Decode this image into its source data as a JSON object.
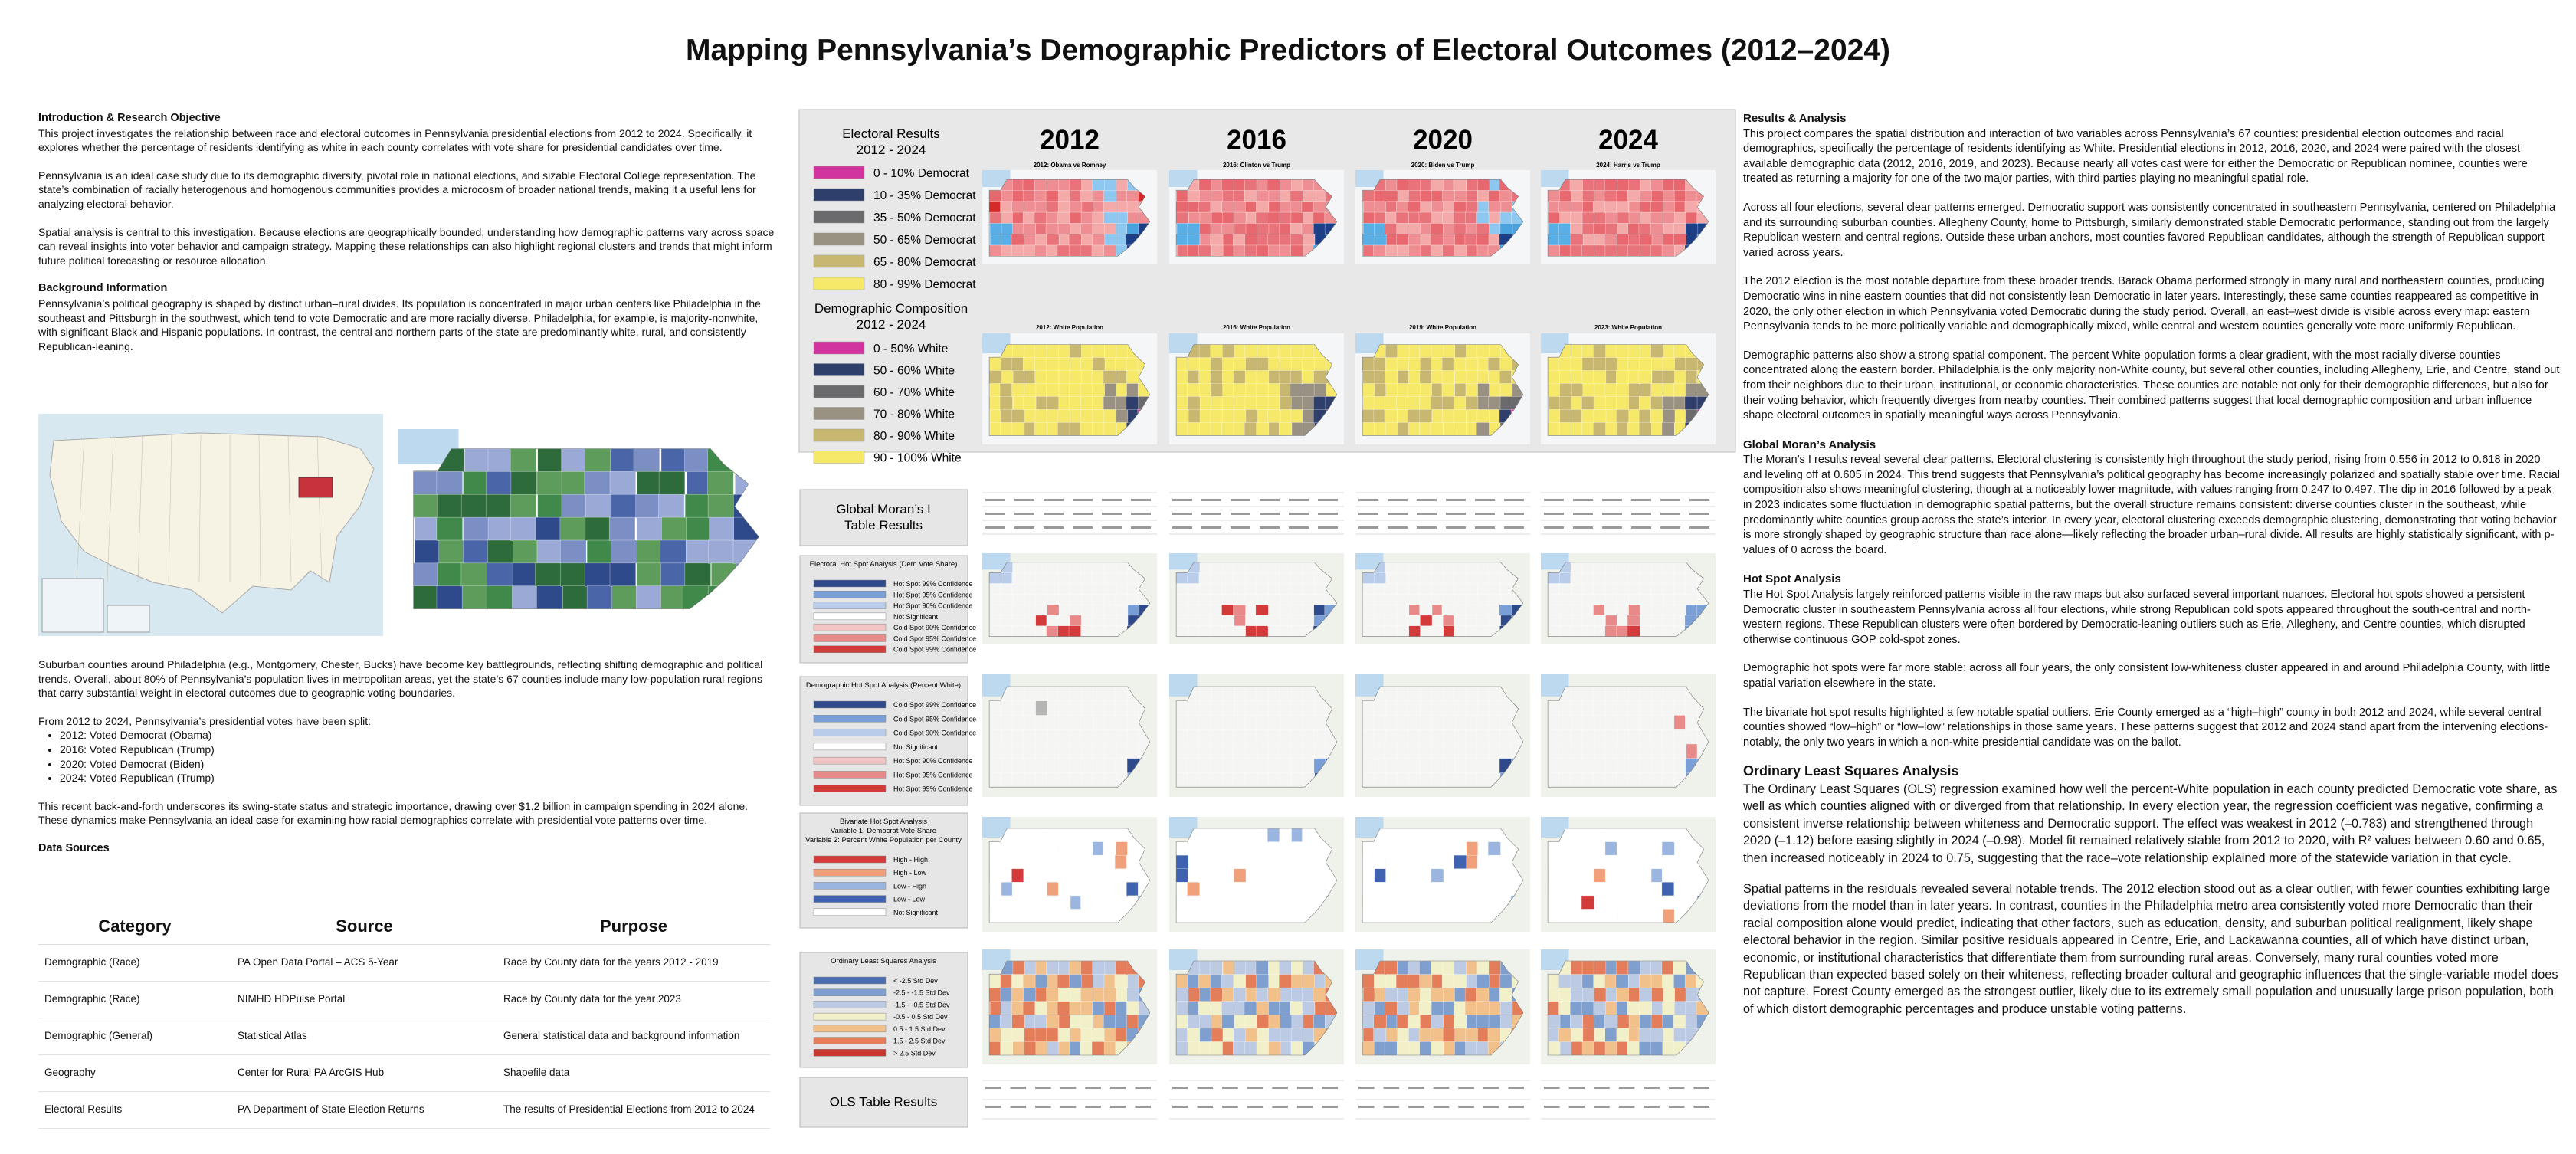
{
  "title": "Mapping Pennsylvania’s Demographic Predictors of Electoral Outcomes (2012–2024)",
  "left": {
    "intro": {
      "heading": "Introduction & Research Objective",
      "paragraphs": [
        "This project investigates the relationship between race and electoral outcomes in Pennsylvania presidential elections from 2012 to 2024. Specifically, it explores whether the percentage of residents identifying as white in each county correlates with vote share for presidential candidates over time.",
        "Pennsylvania is an ideal case study due to its demographic diversity, pivotal role in national elections, and sizable Electoral College representation. The state’s combination of racially heterogenous and homogenous communities provides a microcosm of broader national trends, making it a useful lens for analyzing electoral behavior.",
        "Spatial analysis is central to this investigation. Because elections are geographically bounded, understanding how demographic patterns vary across space can reveal insights into voter behavior and campaign strategy. Mapping these relationships can also highlight regional clusters and trends that might inform future political forecasting or resource allocation."
      ]
    },
    "background": {
      "heading": "Background Information",
      "paragraphs": [
        "Pennsylvania’s political geography is shaped by distinct urban–rural divides. Its population is concentrated in major urban centers like Philadelphia in the southeast and Pittsburgh in the southwest, which tend to vote Democratic and are more racially diverse. Philadelphia, for example, is majority-nonwhite, with significant Black and Hispanic populations. In contrast, the central and northern parts of the state are predominantly white, rural, and consistently Republican-leaning."
      ]
    },
    "suburban": "Suburban counties around Philadelphia (e.g., Montgomery, Chester, Bucks) have become key battlegrounds, reflecting shifting demographic and political trends. Overall, about 80% of Pennsylvania’s population lives in metropolitan areas, yet the state’s 67 counties include many low-population rural regions that carry substantial weight in electoral outcomes due to geographic voting boundaries.",
    "votes_intro": "From 2012 to 2024, Pennsylvania’s presidential votes have been split:",
    "votes": [
      "2012: Voted Democrat (Obama)",
      "2016: Voted Republican (Trump)",
      "2020: Voted Democrat (Biden)",
      "2024: Voted Republican (Trump)"
    ],
    "closing": "This recent back-and-forth underscores its swing-state status and strategic importance, drawing over $1.2 billion in campaign spending in 2024 alone. These dynamics make Pennsylvania an ideal case for examining how racial demographics correlate with presidential vote patterns over time.",
    "data_sources": {
      "heading": "Data Sources",
      "columns": [
        "Category",
        "Source",
        "Purpose"
      ],
      "rows": [
        [
          "Demographic (Race)",
          "PA Open Data Portal – ACS 5-Year",
          "Race by County data for the years 2012 - 2019"
        ],
        [
          "Demographic (Race)",
          "NIMHD HDPulse Portal",
          "Race by County data for the year 2023"
        ],
        [
          "Demographic (General)",
          "Statistical Atlas",
          "General statistical data and background information"
        ],
        [
          "Geography",
          "Center for Rural PA ArcGIS Hub",
          "Shapefile data"
        ],
        [
          "Electoral Results",
          "PA Department of State Election Returns",
          "The results of Presidential Elections from 2012 to 2024"
        ]
      ]
    }
  },
  "center": {
    "years": [
      "2012",
      "2016",
      "2020",
      "2024"
    ],
    "electoral_maps": [
      "2012: Obama vs Romney",
      "2016: Clinton vs Trump",
      "2020: Biden vs Trump",
      "2024: Harris vs Trump"
    ],
    "demographic_maps": [
      "2012: White Population",
      "2016: White Population",
      "2019: White Population",
      "2023: White Population"
    ],
    "electoral_legend": {
      "title_lines": [
        "Electoral Results",
        "2012 - 2024"
      ],
      "items": [
        {
          "label": "0 - 10% Democrat",
          "color": "#d1339f"
        },
        {
          "label": "10 - 35% Democrat",
          "color": "#2f3f6c"
        },
        {
          "label": "35 - 50% Democrat",
          "color": "#6b6b6d"
        },
        {
          "label": "50 - 65% Democrat",
          "color": "#999282"
        },
        {
          "label": "65 - 80% Democrat",
          "color": "#c7b770"
        },
        {
          "label": "80 - 99% Democrat",
          "color": "#f6e96a"
        }
      ]
    },
    "demographic_legend": {
      "title_lines": [
        "Demographic Composition",
        "2012 - 2024"
      ],
      "items": [
        {
          "label": "0 - 50% White",
          "color": "#d1339f"
        },
        {
          "label": "50 - 60% White",
          "color": "#2f3f6c"
        },
        {
          "label": "60 - 70% White",
          "color": "#6b6b6d"
        },
        {
          "label": "70 - 80% White",
          "color": "#999282"
        },
        {
          "label": "80 - 90% White",
          "color": "#c7b770"
        },
        {
          "label": "90 - 100% White",
          "color": "#f6e96a"
        }
      ]
    },
    "rows": [
      {
        "title_lines": [
          "Global Moran’s I",
          "Table Results"
        ]
      },
      {
        "title_lines": [
          "Electoral Hot Spot Analysis (Dem Vote Share)"
        ],
        "items": [
          {
            "label": "Hot Spot 99% Confidence",
            "color": "#2f4a8a"
          },
          {
            "label": "Hot Spot 95% Confidence",
            "color": "#7a9fd6"
          },
          {
            "label": "Hot Spot 90% Confidence",
            "color": "#b9cdea"
          },
          {
            "label": "Not Significant",
            "color": "#ffffff"
          },
          {
            "label": "Cold Spot 90% Confidence",
            "color": "#f2c4c4"
          },
          {
            "label": "Cold Spot 95% Confidence",
            "color": "#e88a8a"
          },
          {
            "label": "Cold Spot 99% Confidence",
            "color": "#d33a3a"
          }
        ]
      },
      {
        "title_lines": [
          "Demographic Hot Spot Analysis (Percent White)"
        ],
        "items": [
          {
            "label": "Cold Spot 99% Confidence",
            "color": "#2f4a8a"
          },
          {
            "label": "Cold Spot 95% Confidence",
            "color": "#7a9fd6"
          },
          {
            "label": "Cold Spot 90% Confidence",
            "color": "#b9cdea"
          },
          {
            "label": "Not Significant",
            "color": "#ffffff"
          },
          {
            "label": "Hot Spot 90% Confidence",
            "color": "#f2c4c4"
          },
          {
            "label": "Hot Spot 95% Confidence",
            "color": "#e88a8a"
          },
          {
            "label": "Hot Spot 99% Confidence",
            "color": "#d33a3a"
          }
        ]
      },
      {
        "title_lines": [
          "Bivariate Hot Spot Analysis",
          "Variable 1: Democrat Vote Share",
          "Variable 2: Percent White Population per County"
        ],
        "items": [
          {
            "label": "High - High",
            "color": "#d33a3a"
          },
          {
            "label": "High - Low",
            "color": "#f0a07a"
          },
          {
            "label": "Low - High",
            "color": "#9ab6e0"
          },
          {
            "label": "Low - Low",
            "color": "#3f63b0"
          },
          {
            "label": "Not Significant",
            "color": "#ffffff"
          }
        ]
      },
      {
        "title_lines": [
          "Ordinary Least Squares Analysis"
        ],
        "items": [
          {
            "label": "< -2.5 Std Dev",
            "color": "#4a6fb0"
          },
          {
            "label": "-2.5 - -1.5 Std Dev",
            "color": "#7f9fcf"
          },
          {
            "label": "-1.5 - -0.5 Std Dev",
            "color": "#bccbe3"
          },
          {
            "label": "-0.5 - 0.5 Std Dev",
            "color": "#f2f0c8"
          },
          {
            "label": "0.5 - 1.5 Std Dev",
            "color": "#f2c08a"
          },
          {
            "label": "1.5 - 2.5 Std Dev",
            "color": "#e47e5a"
          },
          {
            "label": "> 2.5 Std Dev",
            "color": "#c8372e"
          }
        ]
      },
      {
        "title_lines": [
          "OLS Table Results"
        ]
      }
    ]
  },
  "right": {
    "results": {
      "heading": "Results & Analysis",
      "paragraphs": [
        "This project compares the spatial distribution and interaction of two variables across Pennsylvania’s 67 counties: presidential election outcomes and racial demographics, specifically the percentage of residents identifying as White. Presidential elections in 2012, 2016, 2020, and 2024 were paired with the closest available demographic data (2012, 2016, 2019, and 2023). Because nearly all votes cast were for either the Democratic or Republican nominee, counties were treated as returning a majority for one of the two major parties, with third parties playing no meaningful spatial role.",
        "Across all four elections, several clear patterns emerged. Democratic support was consistently concentrated in southeastern Pennsylvania, centered on Philadelphia and its surrounding suburban counties. Allegheny County, home to Pittsburgh, similarly demonstrated stable Democratic performance, standing out from the largely Republican western and central regions. Outside these urban anchors, most counties favored Republican candidates, although the strength of Republican support varied across years.",
        "The 2012 election is the most notable departure from these broader trends. Barack Obama performed strongly in many rural and northeastern counties, producing Democratic wins in nine eastern counties that did not consistently lean Democratic in later years. Interestingly, these same counties reappeared as competitive in 2020, the only other election in which Pennsylvania voted Democratic during the study period. Overall, an east–west divide is visible across every map: eastern Pennsylvania tends to be more politically variable and demographically mixed, while central and western counties generally vote more uniformly Republican.",
        "Demographic patterns also show a strong spatial component. The percent White population forms a clear gradient, with the most racially diverse counties concentrated along the eastern border. Philadelphia is the only majority non-White county, but several other counties, including Allegheny, Erie, and Centre, stand out from their neighbors due to their urban, institutional, or economic characteristics. These counties are notable not only for their demographic differences, but also for their voting behavior, which frequently diverges from nearby counties. Their combined patterns suggest that local demographic composition and urban influence shape electoral outcomes in spatially meaningful ways across Pennsylvania."
      ]
    },
    "morans": {
      "heading": "Global Moran’s Analysis",
      "paragraphs": [
        "The Moran’s I results reveal several clear patterns. Electoral clustering is consistently high throughout the study period, rising from 0.556 in 2012 to 0.618 in 2020 and leveling off at 0.605 in 2024. This trend suggests that Pennsylvania’s political geography has become increasingly polarized and spatially stable over time. Racial composition also shows meaningful clustering, though at a noticeably lower magnitude, with values ranging from 0.247 to 0.497. The dip in 2016 followed by a peak in 2023 indicates some fluctuation in demographic spatial patterns, but the overall structure remains consistent: diverse counties cluster in the southeast, while predominantly white counties group across the state’s interior. In every year, electoral clustering exceeds demographic clustering, demonstrating that voting behavior is more strongly shaped by geographic structure than race alone—likely reflecting the broader urban–rural divide. All results are highly statistically significant, with p-values of 0 across the board."
      ]
    },
    "hotspot": {
      "heading": "Hot Spot Analysis",
      "paragraphs": [
        "The Hot Spot Analysis largely reinforced patterns visible in the raw maps but also surfaced several important nuances. Electoral hot spots showed a persistent Democratic cluster in southeastern Pennsylvania across all four elections, while strong Republican cold spots appeared throughout the south-central and north-western regions. These Republican clusters were often bordered by Democratic-leaning outliers such as Erie, Allegheny, and Centre counties, which disrupted otherwise continuous GOP cold-spot zones.",
        "Demographic hot spots were far more stable: across all four years, the only consistent low-whiteness cluster appeared in and around Philadelphia County, with little spatial variation elsewhere in the state.",
        "The bivariate hot spot results highlighted a few notable spatial outliers. Erie County emerged as a “high–high” county in both 2012 and 2024, while several central counties showed “low–high” or “low–low” relationships in those same years. These patterns suggest that 2012 and 2024 stand apart from the intervening elections- notably, the only two years in which a non-white presidential candidate was on the ballot."
      ]
    },
    "ols": {
      "heading": "Ordinary Least Squares Analysis",
      "paragraphs": [
        "The Ordinary Least Squares (OLS) regression examined how well the percent-White population in each county predicted Democratic vote share, as well as which counties aligned with or diverged from that relationship. In every election year, the regression coefficient was negative, confirming a consistent inverse relationship between whiteness and Democratic support. The effect was weakest in 2012 (–0.783) and strengthened through 2020 (–1.12) before easing slightly in 2024 (–0.98). Model fit remained relatively stable from 2012 to 2020, with R² values between 0.60 and 0.65, then increased noticeably in 2024 to 0.75, suggesting that the race–vote relationship explained more of the statewide variation in that cycle.",
        "Spatial patterns in the residuals revealed several notable trends. The 2012 election stood out as a clear outlier, with fewer counties exhibiting large deviations from the model than in later years. In contrast, counties in the Philadelphia metro area consistently voted more Democratic than their racial composition alone would predict, indicating that other factors, such as education, density, and suburban political realignment, likely shape electoral behavior in the region. Similar positive residuals appeared in Centre, Erie, and Lackawanna counties, all of which have distinct urban, economic, or institutional characteristics that differentiate them from surrounding rural areas. Conversely, many rural counties voted more Republican than expected based solely on their whiteness, reflecting broader cultural and geographic influences that the single-variable model does not capture. Forest County emerged as the strongest outlier, likely due to its extremely small population and unusually large prison population, both of which distort demographic percentages and produce unstable voting patterns."
      ]
    }
  }
}
